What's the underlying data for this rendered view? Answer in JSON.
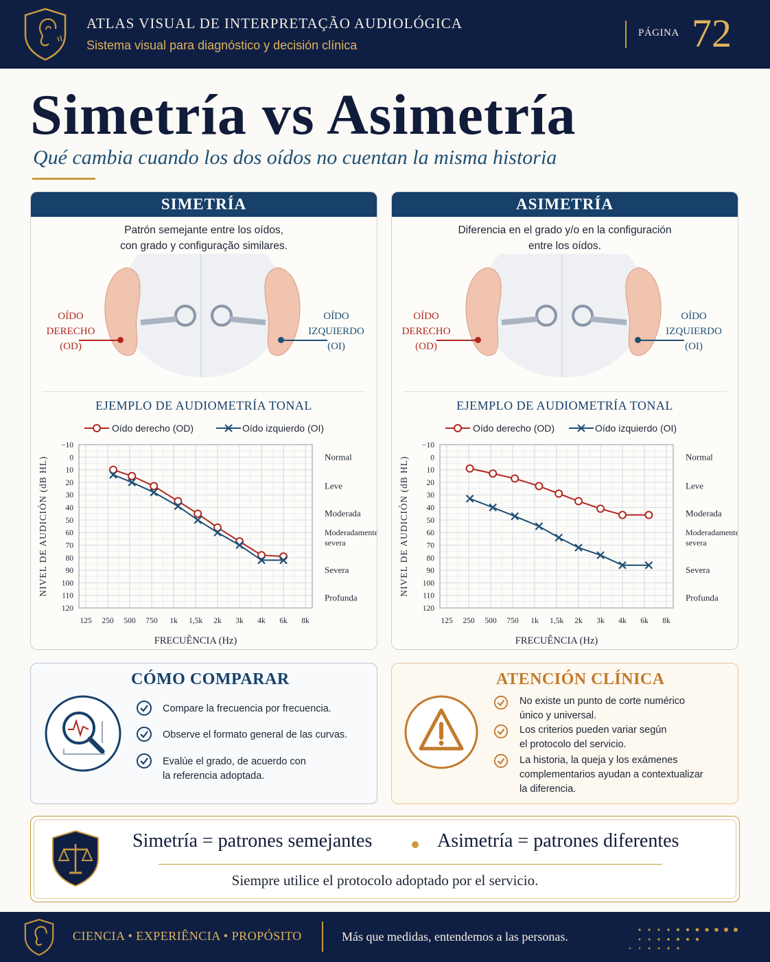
{
  "colors": {
    "navy": "#0f1f44",
    "panel_header": "#17406a",
    "gold": "#c99a3f",
    "right_ear": "#b0281f",
    "left_ear": "#1e4f74"
  },
  "header": {
    "title": "ATLAS VISUAL DE INTERPRETAÇÃO AUDIOLÓGICA",
    "subtitle": "Sistema visual para diagnóstico y decisión clínica",
    "page_label": "PÁGINA",
    "page_number": "72",
    "icon": "ear-shield-icon"
  },
  "main": {
    "title": "Simetría vs Asimetría",
    "subtitle": "Qué cambia cuando los dos oídos no cuentan la misma historia"
  },
  "panels": {
    "symmetry": {
      "header": "SIMETRÍA",
      "desc_line1": "Patrón semejante entre los oídos,",
      "desc_line2": "con grado y configuração similares.",
      "od_line1": "OÍDO",
      "od_line2": "DERECHO (OD)",
      "oi_line1": "OÍDO",
      "oi_line2": "IZQUIERDO (OI)"
    },
    "asymmetry": {
      "header": "ASIMETRÍA",
      "desc_line1": "Diferencia en el grado y/o en la configuración",
      "desc_line2": "entre los oídos.",
      "od_line1": "OÍDO",
      "od_line2": "DERECHO (OD)",
      "oi_line1": "OÍDO",
      "oi_line2": "IZQUIERDO (OI)"
    }
  },
  "chart_data": [
    {
      "type": "line",
      "title": "EJEMPLO DE AUDIOMETRÍA TONAL",
      "xlabel": "FRECUÊNCIA (Hz)",
      "ylabel": "NIVEL DE AUDICIÓN (dB HL)",
      "categories": [
        "125",
        "250",
        "500",
        "750",
        "1k",
        "1,5k",
        "2k",
        "3k",
        "4k",
        "6k",
        "8k"
      ],
      "y_ticks": [
        -10,
        0,
        10,
        20,
        30,
        40,
        50,
        60,
        70,
        80,
        90,
        100,
        110,
        120
      ],
      "ylim": [
        -10,
        120
      ],
      "y_inverted": true,
      "grid": true,
      "legend": "top",
      "severity_labels": [
        "Normal",
        "Leve",
        "Moderada",
        "Moderadamente",
        "severa",
        "Severa",
        "Profunda"
      ],
      "series": [
        {
          "name": "Oído derecho (OD)",
          "marker": "circle",
          "color": "#b0281f",
          "x": [
            1.25,
            2.1,
            3.1,
            4.2,
            5.1,
            6.0,
            7.0,
            8.0,
            9.0
          ],
          "values": [
            10,
            15,
            23,
            35,
            45,
            56,
            67,
            78,
            79
          ]
        },
        {
          "name": "Oído izquierdo (OI)",
          "marker": "x",
          "color": "#1e4f74",
          "x": [
            1.25,
            2.1,
            3.1,
            4.2,
            5.1,
            6.0,
            7.0,
            8.0,
            9.0
          ],
          "values": [
            14,
            20,
            28,
            39,
            50,
            60,
            70,
            82,
            82
          ]
        }
      ]
    },
    {
      "type": "line",
      "title": "EJEMPLO DE AUDIOMETRÍA TONAL",
      "xlabel": "FRECUÊNCIA (Hz)",
      "ylabel": "NIVEL DE AUDICIÓN (dB HL)",
      "categories": [
        "125",
        "250",
        "500",
        "750",
        "1k",
        "1,5k",
        "2k",
        "3k",
        "4k",
        "6k",
        "8k"
      ],
      "y_ticks": [
        -10,
        0,
        10,
        20,
        30,
        40,
        50,
        60,
        70,
        80,
        90,
        100,
        110,
        120
      ],
      "ylim": [
        -10,
        120
      ],
      "y_inverted": true,
      "grid": true,
      "legend": "top",
      "severity_labels": [
        "Normal",
        "Leve",
        "Moderada",
        "Moderadamente",
        "severa",
        "Severa",
        "Profunda"
      ],
      "series": [
        {
          "name": "Oído derecho (OD)",
          "marker": "circle",
          "color": "#b0281f",
          "x": [
            1.05,
            2.1,
            3.1,
            4.2,
            5.1,
            6.0,
            7.0,
            8.0,
            9.2
          ],
          "values": [
            9,
            13,
            17,
            23,
            29,
            35,
            41,
            46,
            46
          ]
        },
        {
          "name": "Oído izquierdo (OI)",
          "marker": "x",
          "color": "#1e4f74",
          "x": [
            1.05,
            2.1,
            3.1,
            4.2,
            5.1,
            6.0,
            7.0,
            8.0,
            9.2
          ],
          "values": [
            33,
            40,
            47,
            55,
            64,
            72,
            78,
            86,
            86
          ]
        }
      ]
    }
  ],
  "compare": {
    "title": "CÓMO COMPARAR",
    "icon": "magnifier-chart-icon",
    "b1": "Compare la frecuencia por frecuencia.",
    "b2": "Observe el formato general de las curvas.",
    "b3_line1": "Evalúe el grado, de acuerdo con",
    "b3_line2": "la referencia adoptada."
  },
  "attention": {
    "title": "ATENCIÓN CLÍNICA",
    "icon": "warning-icon",
    "b1_line1": "No existe un punto de corte numérico",
    "b1_line2": "único y universal.",
    "b2_line1": "Los criterios pueden variar según",
    "b2_line2": "el protocolo del servicio.",
    "b3_line1": "La historia, la queja y los exámenes",
    "b3_line2": "complementarios ayudan a contextualizar",
    "b3_line3": "la diferencia."
  },
  "summary": {
    "icon": "scales-shield-icon",
    "a": "Simetría = patrones semejantes",
    "b": "Asimetría = patrones diferentes",
    "note": "Siempre utilice el protocolo adoptado por el servicio."
  },
  "footer": {
    "motto": "CIENCIA • EXPERIÊNCIA • PROPÓSITO",
    "tagline": "Más que medidas, entendemos a las personas."
  }
}
